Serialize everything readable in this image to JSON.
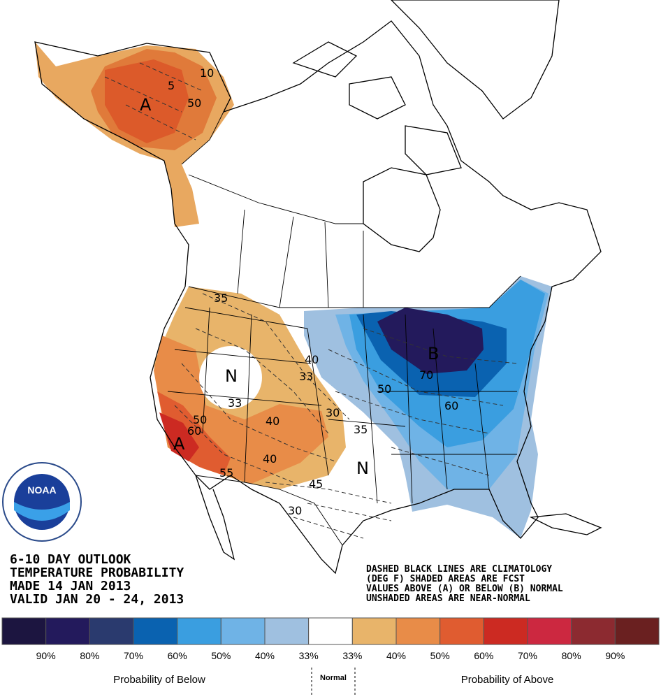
{
  "title_lines": [
    "6-10 DAY OUTLOOK",
    "TEMPERATURE PROBABILITY",
    "MADE  14 JAN 2013",
    "VALID  JAN 20 - 24, 2013"
  ],
  "note_lines": [
    "DASHED BLACK LINES ARE CLIMATOLOGY",
    "(DEG F) SHADED AREAS ARE FCST",
    "VALUES ABOVE (A) OR BELOW (B) NORMAL",
    "UNSHADED AREAS ARE NEAR-NORMAL"
  ],
  "logo": "NOAA",
  "map_labels": [
    "A",
    "50",
    "10",
    "5",
    "35",
    "N",
    "33",
    "33",
    "40",
    "50",
    "60",
    "A",
    "40",
    "55",
    "30",
    "35",
    "40",
    "45",
    "N",
    "B",
    "50",
    "70",
    "60",
    "30"
  ],
  "legend": {
    "colors": [
      "#1c1540",
      "#231a5c",
      "#2a3a6e",
      "#0a62b0",
      "#3a9ee0",
      "#6fb3e6",
      "#9fc0e0",
      "#ffffff",
      "#e8b46a",
      "#e88c48",
      "#e05c30",
      "#cc2a22",
      "#cc2840",
      "#8c2a30",
      "#6a2020"
    ],
    "labels": [
      "90%",
      "80%",
      "70%",
      "60%",
      "50%",
      "40%",
      "33%",
      "33%",
      "40%",
      "50%",
      "60%",
      "70%",
      "80%",
      "90%"
    ],
    "below": "Probability of Below",
    "normal": "Normal",
    "above": "Probability of Above"
  }
}
